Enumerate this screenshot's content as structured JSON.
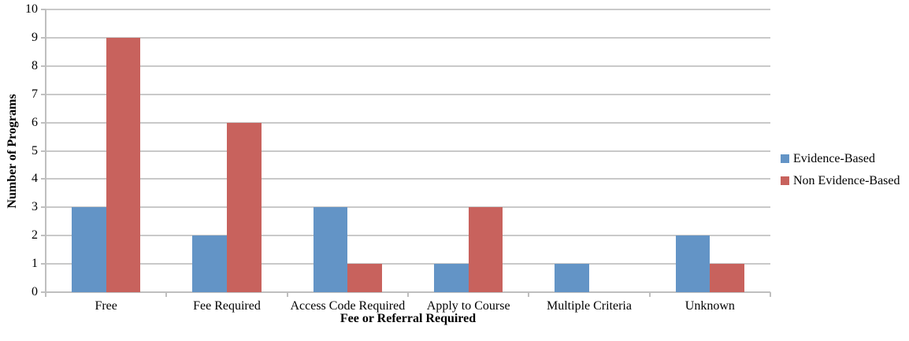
{
  "chart_data": {
    "type": "bar",
    "title": "",
    "categories": [
      "Free",
      "Fee Required",
      "Access Code Required",
      "Apply to Course",
      "Multiple Criteria",
      "Unknown"
    ],
    "series": [
      {
        "name": "Evidence-Based",
        "color": "#6394c6",
        "values": [
          3,
          2,
          3,
          1,
          1,
          2
        ]
      },
      {
        "name": "Non Evidence-Based",
        "color": "#c8625d",
        "values": [
          9,
          6,
          1,
          3,
          0,
          1
        ]
      }
    ],
    "xlabel": "Fee or Referral Required",
    "ylabel": "Number of Programs",
    "ylim": [
      0,
      10
    ],
    "ytick_step": 1,
    "yticks": [
      "0",
      "1",
      "2",
      "3",
      "4",
      "5",
      "6",
      "7",
      "8",
      "9",
      "10"
    ],
    "grid": true,
    "legend_position": "right"
  },
  "colors": {
    "gridline": "#c9c9c9",
    "axis": "#bfbfbf",
    "text": "#000000",
    "background": "#ffffff"
  }
}
